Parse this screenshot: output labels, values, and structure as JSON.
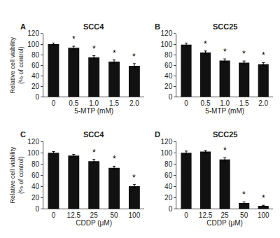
{
  "chart_data": [
    {
      "type": "bar",
      "label": "A",
      "title": "SCC4",
      "xlabel": "5-MTP (mM)",
      "ylabel": "Relative cell viability\n(% of control)",
      "categories": [
        "0",
        "0.5",
        "1.0",
        "1.5",
        "2.0"
      ],
      "values": [
        100,
        93,
        75,
        67,
        59
      ],
      "errors": [
        2,
        3,
        3,
        3,
        4
      ],
      "annotations": [
        {
          "category": "0.5",
          "text": "*"
        },
        {
          "category": "1.0",
          "text": "*"
        },
        {
          "category": "1.5",
          "text": "*"
        },
        {
          "category": "2.0",
          "text": "*"
        }
      ],
      "color": "#111111",
      "ylim": [
        0,
        120
      ],
      "yticks": [
        0,
        20,
        40,
        60,
        80,
        100,
        120
      ],
      "grid": false
    },
    {
      "type": "bar",
      "label": "B",
      "title": "SCC25",
      "xlabel": "5-MTP (mM)",
      "categories": [
        "0",
        "0.5",
        "1.0",
        "1.5",
        "2.0"
      ],
      "values": [
        99,
        84,
        69,
        65,
        62
      ],
      "errors": [
        3,
        3,
        3,
        3,
        3
      ],
      "annotations": [
        {
          "category": "0.5",
          "text": "*"
        },
        {
          "category": "1.0",
          "text": "*"
        },
        {
          "category": "1.5",
          "text": "*"
        },
        {
          "category": "2.0",
          "text": "*"
        }
      ],
      "color": "#111111",
      "ylim": [
        0,
        120
      ],
      "yticks": [
        0,
        20,
        40,
        60,
        80,
        100,
        120
      ],
      "grid": false
    },
    {
      "type": "bar",
      "label": "C",
      "title": "SCC4",
      "xlabel": "CDDP (μM)",
      "ylabel": "Relative cell viability\n(% of control)",
      "categories": [
        "0",
        "12.5",
        "25",
        "50",
        "100"
      ],
      "values": [
        100,
        95,
        85,
        73,
        40
      ],
      "errors": [
        2,
        2,
        3,
        3,
        3
      ],
      "annotations": [
        {
          "category": "25",
          "text": "*"
        },
        {
          "category": "50",
          "text": "*"
        },
        {
          "category": "100",
          "text": "*"
        }
      ],
      "color": "#111111",
      "ylim": [
        0,
        120
      ],
      "yticks": [
        0,
        20,
        40,
        60,
        80,
        100,
        120
      ],
      "grid": false
    },
    {
      "type": "bar",
      "label": "D",
      "title": "SCC25",
      "xlabel": "CDDP (μM)",
      "categories": [
        "0",
        "12.5",
        "25",
        "50",
        "100"
      ],
      "values": [
        100,
        102,
        88,
        10,
        5
      ],
      "errors": [
        3,
        2,
        3,
        2,
        1
      ],
      "annotations": [
        {
          "category": "25",
          "text": "*"
        },
        {
          "category": "50",
          "text": "*"
        },
        {
          "category": "100",
          "text": "*"
        }
      ],
      "color": "#111111",
      "ylim": [
        0,
        120
      ],
      "yticks": [
        0,
        20,
        40,
        60,
        80,
        100,
        120
      ],
      "grid": false
    }
  ]
}
